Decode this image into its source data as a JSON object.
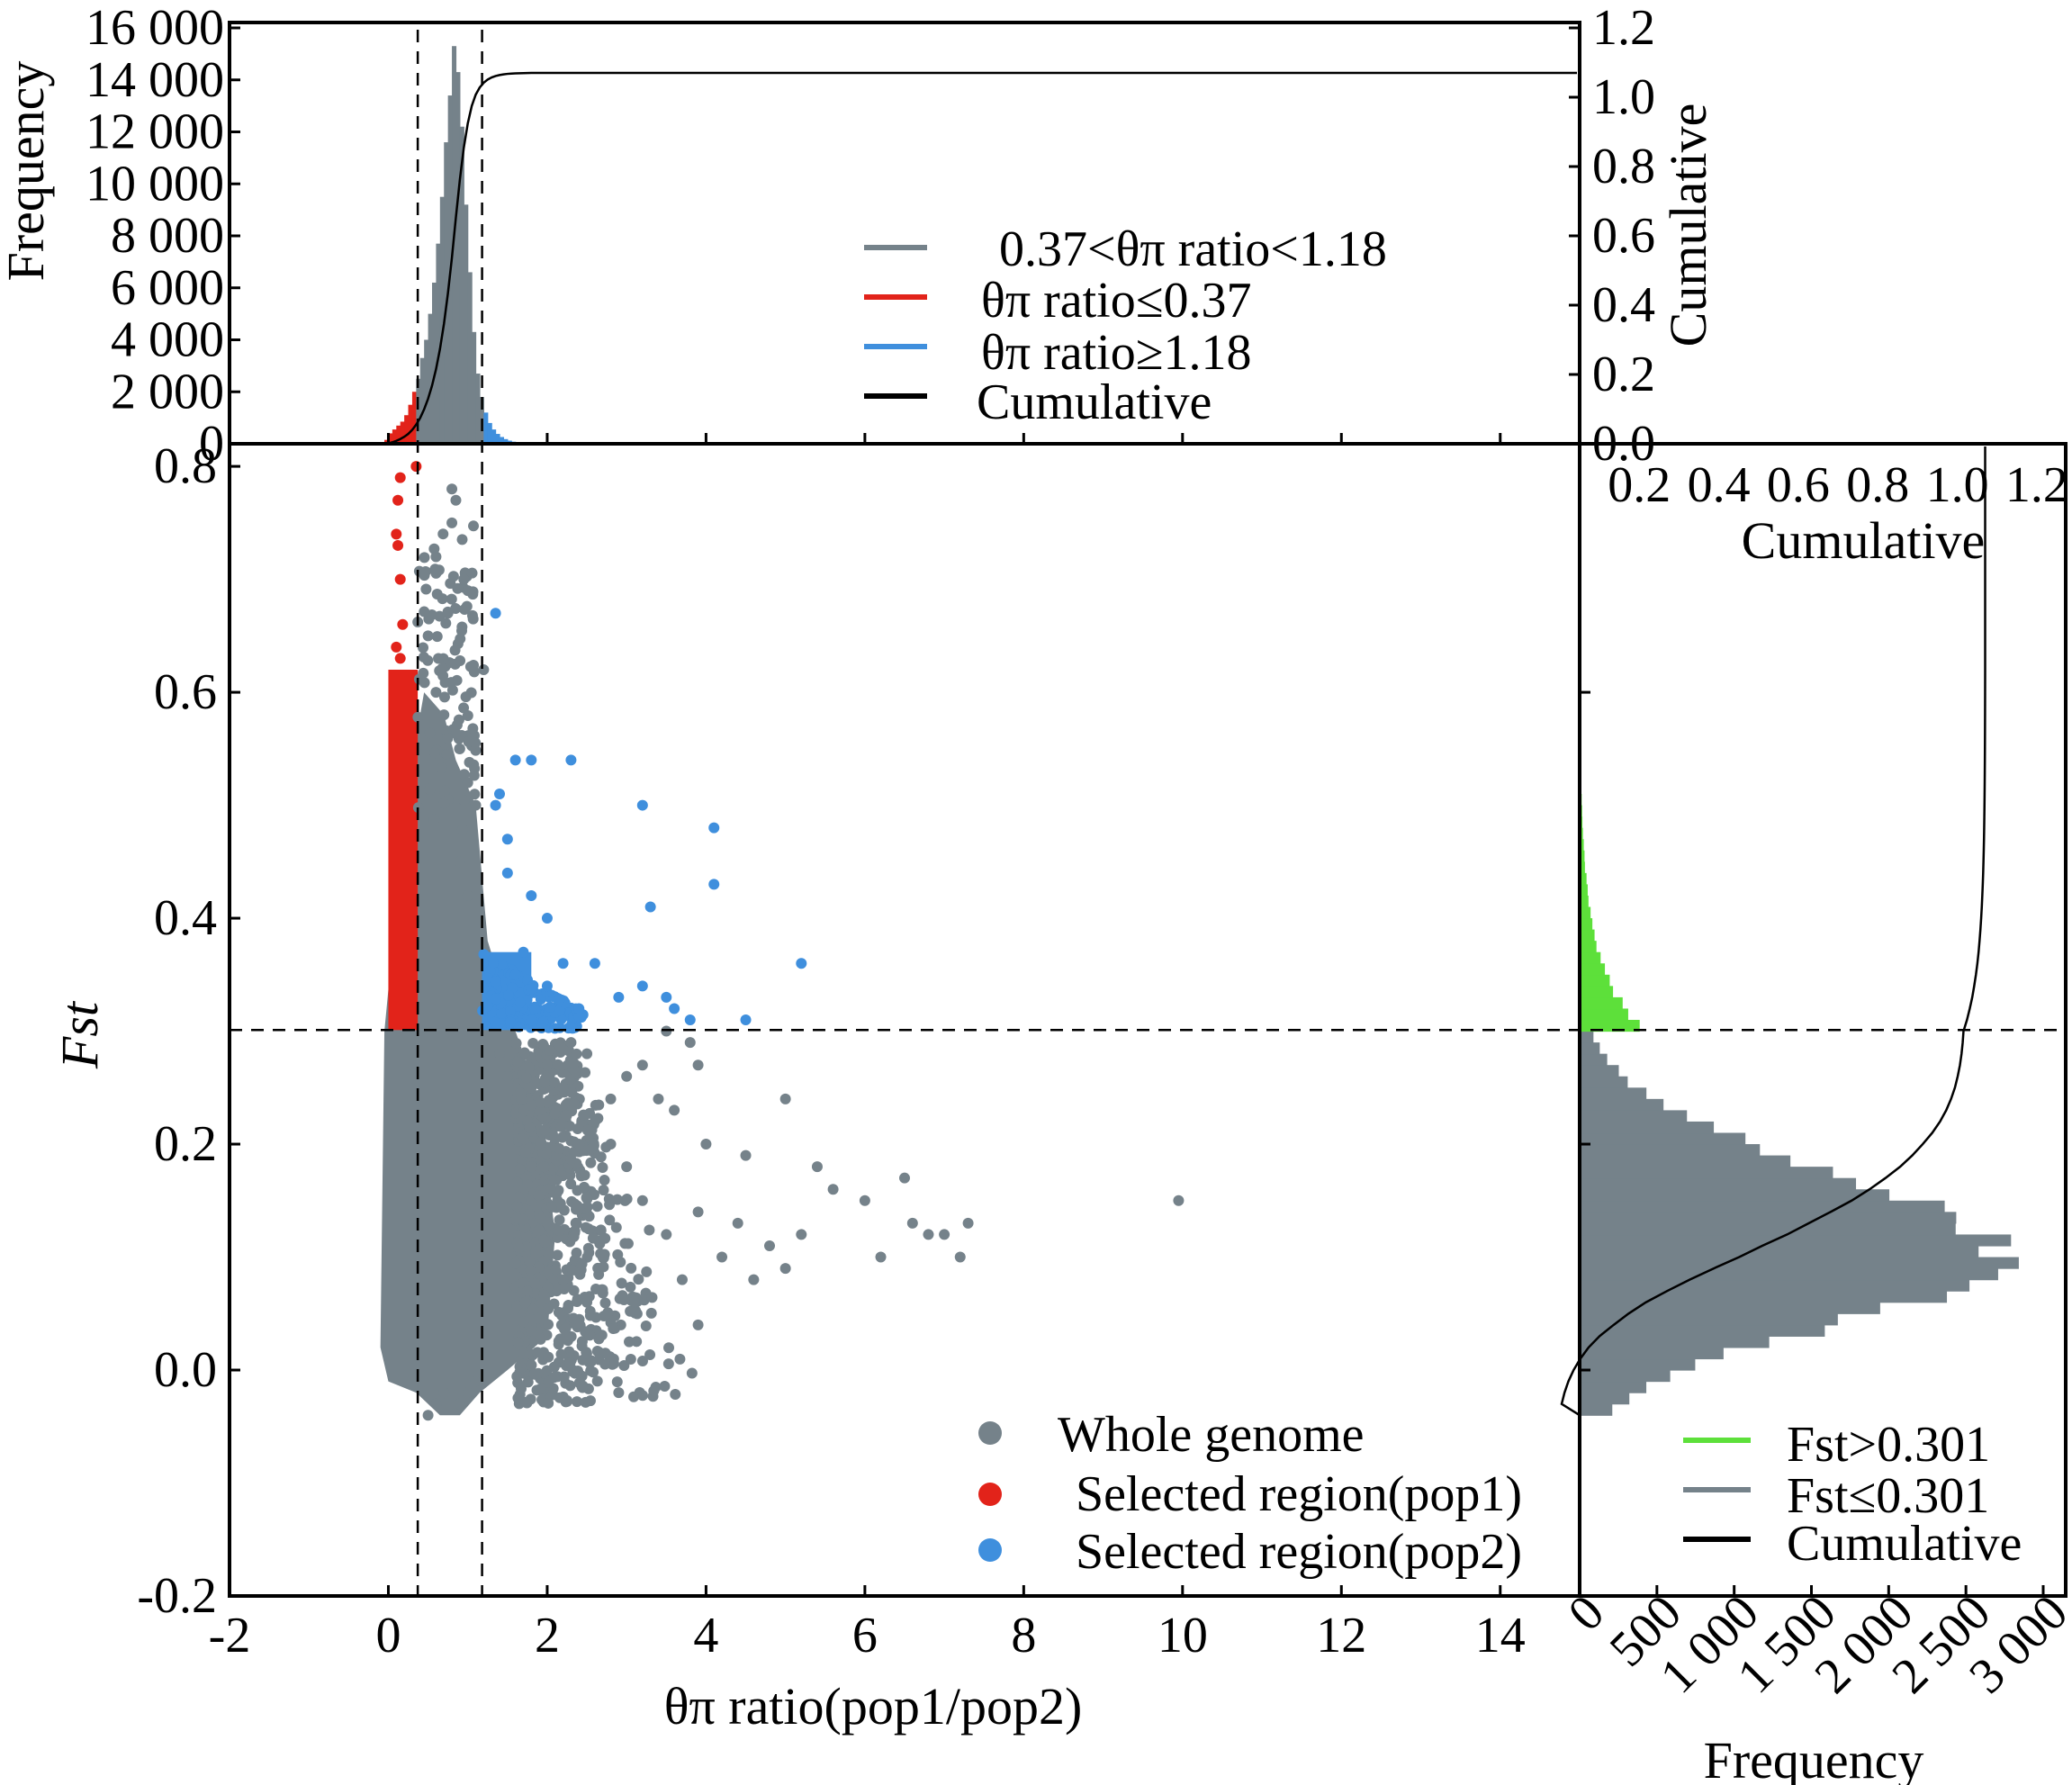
{
  "chart_data": [
    {
      "id": "top-histogram",
      "type": "histogram",
      "title": "",
      "ylabel": "Frequency",
      "y2label": "Cumulative",
      "xlim": [
        -2,
        15
      ],
      "ylim": [
        0,
        16000
      ],
      "y2lim": [
        0.0,
        1.2
      ],
      "yticks": [
        0,
        2000,
        4000,
        6000,
        8000,
        10000,
        12000,
        14000,
        16000
      ],
      "ytick_labels": [
        "0",
        "2 000",
        "4 000",
        "6 000",
        "8 000",
        "10 000",
        "12 000",
        "14 000",
        "16 000"
      ],
      "y2ticks": [
        0.0,
        0.2,
        0.4,
        0.6,
        0.8,
        1.0,
        1.2
      ],
      "y2tick_labels": [
        "0.0",
        "0.2",
        "0.4",
        "0.6",
        "0.8",
        "1.0",
        "1.2"
      ],
      "bin_width": 0.05,
      "bins": [
        {
          "x": -0.05,
          "v": 150
        },
        {
          "x": 0.0,
          "v": 400
        },
        {
          "x": 0.05,
          "v": 550
        },
        {
          "x": 0.1,
          "v": 700
        },
        {
          "x": 0.15,
          "v": 850
        },
        {
          "x": 0.2,
          "v": 1100
        },
        {
          "x": 0.25,
          "v": 1500
        },
        {
          "x": 0.3,
          "v": 2000
        },
        {
          "x": 0.35,
          "v": 2500
        },
        {
          "x": 0.4,
          "v": 3300
        },
        {
          "x": 0.45,
          "v": 4000
        },
        {
          "x": 0.5,
          "v": 5000
        },
        {
          "x": 0.55,
          "v": 6200
        },
        {
          "x": 0.6,
          "v": 7700
        },
        {
          "x": 0.65,
          "v": 9500
        },
        {
          "x": 0.7,
          "v": 11600
        },
        {
          "x": 0.75,
          "v": 13400
        },
        {
          "x": 0.8,
          "v": 15300
        },
        {
          "x": 0.85,
          "v": 14300
        },
        {
          "x": 0.9,
          "v": 12200
        },
        {
          "x": 0.95,
          "v": 9200
        },
        {
          "x": 1.0,
          "v": 6600
        },
        {
          "x": 1.05,
          "v": 4300
        },
        {
          "x": 1.1,
          "v": 2700
        },
        {
          "x": 1.15,
          "v": 1800
        },
        {
          "x": 1.2,
          "v": 1200
        },
        {
          "x": 1.25,
          "v": 800
        },
        {
          "x": 1.3,
          "v": 550
        },
        {
          "x": 1.35,
          "v": 380
        },
        {
          "x": 1.4,
          "v": 260
        },
        {
          "x": 1.45,
          "v": 180
        },
        {
          "x": 1.5,
          "v": 120
        },
        {
          "x": 1.55,
          "v": 80
        },
        {
          "x": 1.6,
          "v": 55
        },
        {
          "x": 1.65,
          "v": 40
        },
        {
          "x": 1.7,
          "v": 30
        },
        {
          "x": 1.75,
          "v": 20
        }
      ],
      "cumulative_max": 1.07,
      "thresholds_x": [
        0.37,
        1.18
      ],
      "legend": {
        "position": "upper-center",
        "entries": [
          {
            "label": "0.37<θπ ratio<1.18",
            "color": "#75828a"
          },
          {
            "label": "θπ ratio≤0.37",
            "color": "#e2231a"
          },
          {
            "label": "θπ ratio≥1.18",
            "color": "#3f8fdd"
          },
          {
            "label": "Cumulative",
            "color": "#000000"
          }
        ]
      }
    },
    {
      "id": "main-scatter",
      "type": "scatter",
      "xlabel": "θπ ratio(pop1/pop2)",
      "ylabel": "Fst",
      "xlim": [
        -2,
        15
      ],
      "ylim": [
        -0.2,
        0.82
      ],
      "xticks": [
        -2,
        0,
        2,
        4,
        6,
        8,
        10,
        12,
        14
      ],
      "xtick_labels": [
        "-2",
        "0",
        "2",
        "4",
        "6",
        "8",
        "10",
        "12",
        "14"
      ],
      "yticks": [
        -0.2,
        0.0,
        0.2,
        0.4,
        0.6,
        0.8
      ],
      "ytick_labels": [
        "-0.2",
        "0.0",
        "0.2",
        "0.4",
        "0.6",
        "0.8"
      ],
      "threshold_y": 0.301,
      "thresholds_x": [
        0.37,
        1.18
      ],
      "series": [
        {
          "name": "Whole genome",
          "color": "#75828a",
          "points": [
            [
              1.2,
              0.62
            ],
            [
              0.8,
              0.78
            ],
            [
              0.85,
              0.77
            ],
            [
              0.8,
              0.75
            ],
            [
              0.6,
              0.72
            ],
            [
              0.75,
              0.67
            ],
            [
              0.95,
              0.7
            ],
            [
              1.0,
              0.69
            ],
            [
              0.5,
              0.65
            ],
            [
              0.6,
              0.6
            ],
            [
              0.7,
              0.58
            ],
            [
              0.9,
              0.55
            ],
            [
              1.0,
              0.52
            ],
            [
              1.1,
              0.5
            ],
            [
              0.9,
              0.45
            ],
            [
              1.0,
              0.42
            ],
            [
              1.4,
              0.28
            ],
            [
              1.5,
              0.26
            ],
            [
              1.8,
              0.25
            ],
            [
              2.0,
              0.27
            ],
            [
              2.3,
              0.29
            ],
            [
              2.5,
              0.28
            ],
            [
              2.8,
              0.24
            ],
            [
              3.0,
              0.26
            ],
            [
              3.2,
              0.27
            ],
            [
              3.4,
              0.24
            ],
            [
              3.6,
              0.23
            ],
            [
              3.9,
              0.27
            ],
            [
              3.8,
              0.29
            ],
            [
              3.5,
              0.3
            ],
            [
              4.0,
              0.2
            ],
            [
              4.5,
              0.19
            ],
            [
              5.0,
              0.24
            ],
            [
              5.4,
              0.18
            ],
            [
              5.6,
              0.16
            ],
            [
              6.0,
              0.15
            ],
            [
              6.5,
              0.17
            ],
            [
              7.0,
              0.12
            ],
            [
              7.2,
              0.1
            ],
            [
              7.3,
              0.13
            ],
            [
              6.8,
              0.12
            ],
            [
              6.6,
              0.13
            ],
            [
              6.2,
              0.1
            ],
            [
              5.2,
              0.12
            ],
            [
              5.0,
              0.09
            ],
            [
              4.8,
              0.11
            ],
            [
              4.6,
              0.08
            ],
            [
              4.4,
              0.13
            ],
            [
              4.2,
              0.1
            ],
            [
              3.9,
              0.14
            ],
            [
              3.7,
              0.08
            ],
            [
              3.5,
              0.12
            ],
            [
              3.2,
              0.15
            ],
            [
              3.0,
              0.18
            ],
            [
              2.8,
              0.2
            ],
            [
              2.6,
              0.22
            ],
            [
              2.4,
              0.2
            ],
            [
              2.2,
              0.25
            ],
            [
              2.7,
              0.1
            ],
            [
              2.5,
              0.06
            ],
            [
              3.1,
              0.06
            ],
            [
              3.9,
              0.04
            ],
            [
              2.2,
              0.08
            ],
            [
              1.8,
              0.18
            ],
            [
              9.95,
              0.15
            ],
            [
              0.5,
              -0.04
            ],
            [
              0.6,
              -0.03
            ],
            [
              0.7,
              -0.02
            ],
            [
              0.9,
              -0.03
            ],
            [
              1.0,
              -0.02
            ],
            [
              1.1,
              -0.01
            ]
          ],
          "core": {
            "x_range": [
              -0.1,
              1.9
            ],
            "y_range": [
              -0.04,
              0.58
            ]
          }
        },
        {
          "name": "Selected region(pop1)",
          "color": "#e2231a",
          "points": [
            [
              0.35,
              0.8
            ],
            [
              0.15,
              0.79
            ],
            [
              0.12,
              0.77
            ],
            [
              0.1,
              0.74
            ],
            [
              0.12,
              0.73
            ],
            [
              0.15,
              0.7
            ],
            [
              0.18,
              0.66
            ],
            [
              0.1,
              0.64
            ],
            [
              0.15,
              0.63
            ]
          ],
          "core": {
            "x_range": [
              0.0,
              0.37
            ],
            "y_range": [
              0.301,
              0.62
            ]
          }
        },
        {
          "name": "Selected region(pop2)",
          "color": "#3f8fdd",
          "points": [
            [
              1.35,
              0.67
            ],
            [
              1.4,
              0.51
            ],
            [
              1.35,
              0.5
            ],
            [
              1.6,
              0.54
            ],
            [
              1.8,
              0.54
            ],
            [
              2.3,
              0.54
            ],
            [
              3.2,
              0.5
            ],
            [
              4.1,
              0.48
            ],
            [
              4.1,
              0.43
            ],
            [
              3.3,
              0.41
            ],
            [
              1.5,
              0.44
            ],
            [
              1.8,
              0.42
            ],
            [
              2.0,
              0.4
            ],
            [
              1.7,
              0.37
            ],
            [
              2.2,
              0.36
            ],
            [
              2.6,
              0.36
            ],
            [
              2.9,
              0.33
            ],
            [
              3.2,
              0.34
            ],
            [
              3.5,
              0.33
            ],
            [
              3.6,
              0.32
            ],
            [
              3.8,
              0.31
            ],
            [
              4.5,
              0.31
            ],
            [
              5.2,
              0.36
            ],
            [
              2.4,
              0.32
            ],
            [
              2.0,
              0.34
            ],
            [
              1.6,
              0.35
            ],
            [
              1.5,
              0.47
            ]
          ],
          "core": {
            "x_range": [
              1.18,
              1.8
            ],
            "y_range": [
              0.301,
              0.37
            ]
          }
        }
      ],
      "legend": {
        "position": "bottom-right",
        "entries": [
          {
            "label": "Whole genome",
            "color": "#75828a"
          },
          {
            "label": "Selected region(pop1)",
            "color": "#e2231a"
          },
          {
            "label": "Selected region(pop2)",
            "color": "#3f8fdd"
          }
        ]
      }
    },
    {
      "id": "right-histogram",
      "type": "histogram",
      "orientation": "horizontal",
      "xlabel": "Frequency",
      "x2label": "Cumulative",
      "xlim": [
        0,
        3000
      ],
      "xticks": [
        0,
        500,
        1000,
        1500,
        2000,
        2500,
        3000
      ],
      "xtick_labels": [
        "0",
        "500",
        "1 000",
        "1 500",
        "2 000",
        "2 500",
        "3 000"
      ],
      "x2lim": [
        0.0,
        1.25
      ],
      "x2ticks": [
        0.2,
        0.4,
        0.6,
        0.8,
        1.0,
        1.2
      ],
      "x2tick_labels": [
        "0.2",
        "0.4",
        "0.6",
        "0.8",
        "1.0",
        "1.2"
      ],
      "threshold": 0.301,
      "bin_width": 0.01,
      "fst_mean": 0.1,
      "fst_sd_low": 0.06,
      "fst_sd_high": 0.075,
      "peak_frequency": 2700,
      "fst_range": [
        -0.04,
        0.62
      ],
      "cumulative_max": 1.07,
      "legend": {
        "position": "bottom-right",
        "entries": [
          {
            "label": "Fst>0.301",
            "color": "#5de03a"
          },
          {
            "label": "Fst≤0.301",
            "color": "#75828a"
          },
          {
            "label": "Cumulative",
            "color": "#000000"
          }
        ]
      }
    }
  ]
}
